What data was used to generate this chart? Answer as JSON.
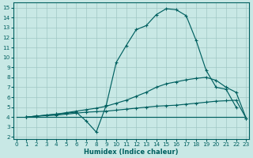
{
  "xlabel": "Humidex (Indice chaleur)",
  "xlim": [
    -0.3,
    23.3
  ],
  "ylim": [
    1.8,
    15.5
  ],
  "xticks": [
    0,
    1,
    2,
    3,
    4,
    5,
    6,
    7,
    8,
    9,
    10,
    11,
    12,
    13,
    14,
    15,
    16,
    17,
    18,
    19,
    20,
    21,
    22,
    23
  ],
  "yticks": [
    2,
    3,
    4,
    5,
    6,
    7,
    8,
    9,
    10,
    11,
    12,
    13,
    14,
    15
  ],
  "bg_color": "#c8e8e5",
  "grid_color": "#a0c8c5",
  "line_color": "#006060",
  "line1": {
    "x": [
      0,
      23
    ],
    "y": [
      4.0,
      4.0
    ]
  },
  "line2": {
    "x": [
      1,
      2,
      3,
      4,
      5,
      6,
      7,
      8,
      9,
      10,
      11,
      12,
      13,
      14,
      15,
      16,
      17,
      18,
      19,
      20,
      21,
      22,
      23
    ],
    "y": [
      4.0,
      4.1,
      4.15,
      4.2,
      4.3,
      4.4,
      4.5,
      4.55,
      4.6,
      4.7,
      4.8,
      4.9,
      5.0,
      5.1,
      5.15,
      5.2,
      5.3,
      5.4,
      5.5,
      5.6,
      5.65,
      5.7,
      3.9
    ]
  },
  "line3": {
    "x": [
      1,
      2,
      3,
      4,
      5,
      6,
      7,
      8,
      9,
      10,
      11,
      12,
      13,
      14,
      15,
      16,
      17,
      18,
      19,
      20,
      21,
      22,
      23
    ],
    "y": [
      4.0,
      4.1,
      4.2,
      4.3,
      4.45,
      4.6,
      4.75,
      4.9,
      5.1,
      5.4,
      5.7,
      6.1,
      6.5,
      7.0,
      7.35,
      7.55,
      7.75,
      7.9,
      8.0,
      7.7,
      7.0,
      6.5,
      3.9
    ]
  },
  "line4": {
    "x": [
      1,
      2,
      3,
      4,
      5,
      6,
      7,
      8,
      9,
      10,
      11,
      12,
      13,
      14,
      15,
      16,
      17,
      18,
      19,
      20,
      21,
      22
    ],
    "y": [
      4.0,
      4.1,
      4.2,
      4.3,
      4.4,
      4.5,
      3.6,
      2.5,
      5.2,
      9.5,
      11.2,
      12.8,
      13.2,
      14.3,
      14.9,
      14.8,
      14.2,
      11.7,
      8.7,
      7.0,
      6.8,
      5.0
    ]
  }
}
